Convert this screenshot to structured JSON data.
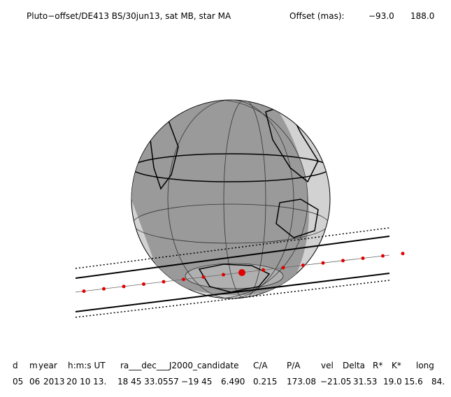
{
  "header": {
    "title": "Pluto−offset/DE413 BS/30jun13, sat MB, star MA",
    "offset_label": "Offset (mas):",
    "offset_values": [
      "−93.0",
      "188.0"
    ]
  },
  "table": {
    "columns": [
      "d",
      "m",
      "year",
      "h:m:s UT",
      "ra___dec___J2000_candidate",
      "C/A",
      "P/A",
      "vel",
      "Delta",
      "R*",
      "K*",
      "long"
    ],
    "rows": [
      [
        "05",
        "06",
        "2013",
        "20 10 13.",
        "18 45 33.0557",
        "−19 45",
        "6.490",
        "0.215",
        "173.08",
        "−21.05",
        "31.53",
        "19.0",
        "15.6",
        "84."
      ]
    ]
  }
}
